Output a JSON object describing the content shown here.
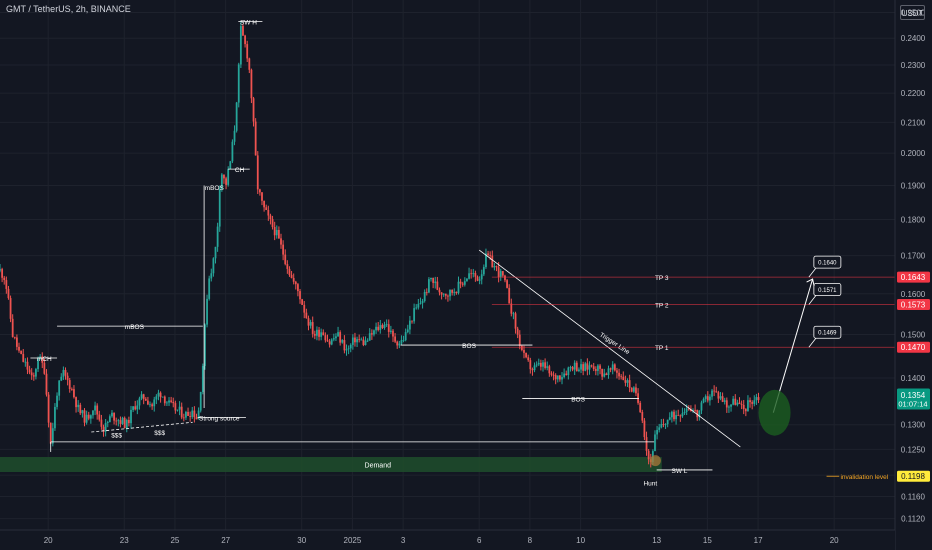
{
  "header": {
    "symbol": "GMT / TetherUS, 2h, BINANCE",
    "currency": "USDT"
  },
  "colors": {
    "background": "#131722",
    "grid": "#1e222d",
    "up": "#26a69a",
    "down": "#ef5350",
    "axis_text": "#b2b5be",
    "annotation": "#ffffff",
    "demand": "#1e4d2b",
    "tp_label": "#f23645",
    "price_label": "#089981",
    "invalidation": "#ffeb3b",
    "target_circle": "#1b5e20"
  },
  "chart_data": {
    "type": "candlestick",
    "y_axis": {
      "min": 0.11,
      "max": 0.255,
      "scale": "log",
      "tick_labels": [
        "0.2500",
        "0.2400",
        "0.2300",
        "0.2200",
        "0.2100",
        "0.2000",
        "0.1900",
        "0.1800",
        "0.1700",
        "0.1600",
        "0.1500",
        "0.1400",
        "0.1300",
        "0.1250",
        "0.1200",
        "0.1160",
        "0.1120"
      ]
    },
    "x_axis": {
      "tick_labels": [
        {
          "t": 20,
          "label": "20"
        },
        {
          "t": 23,
          "label": "23"
        },
        {
          "t": 25,
          "label": "25"
        },
        {
          "t": 27,
          "label": "27"
        },
        {
          "t": 30,
          "label": "30"
        },
        {
          "t": 32,
          "label": "2025"
        },
        {
          "t": 34,
          "label": "3"
        },
        {
          "t": 37,
          "label": "6"
        },
        {
          "t": 39,
          "label": "8"
        },
        {
          "t": 41,
          "label": "10"
        },
        {
          "t": 44,
          "label": "13"
        },
        {
          "t": 46,
          "label": "15"
        },
        {
          "t": 48,
          "label": "17"
        },
        {
          "t": 51,
          "label": "20"
        }
      ],
      "range": [
        18.1,
        53.4
      ]
    },
    "price_path": [
      [
        18.1,
        0.166
      ],
      [
        18.3,
        0.164
      ],
      [
        18.6,
        0.15
      ],
      [
        18.9,
        0.145
      ],
      [
        19.2,
        0.142
      ],
      [
        19.4,
        0.139
      ],
      [
        19.6,
        0.145
      ],
      [
        19.85,
        0.142
      ],
      [
        20.1,
        0.126
      ],
      [
        20.35,
        0.137
      ],
      [
        20.6,
        0.141
      ],
      [
        20.9,
        0.138
      ],
      [
        21.2,
        0.133
      ],
      [
        21.5,
        0.131
      ],
      [
        21.8,
        0.134
      ],
      [
        22.2,
        0.129
      ],
      [
        22.5,
        0.132
      ],
      [
        22.8,
        0.131
      ],
      [
        23.1,
        0.13
      ],
      [
        23.4,
        0.134
      ],
      [
        23.8,
        0.136
      ],
      [
        24.1,
        0.134
      ],
      [
        24.4,
        0.137
      ],
      [
        24.8,
        0.134
      ],
      [
        25.1,
        0.133
      ],
      [
        25.4,
        0.132
      ],
      [
        25.7,
        0.133
      ],
      [
        25.9,
        0.131
      ],
      [
        26.1,
        0.143
      ],
      [
        26.3,
        0.163
      ],
      [
        26.5,
        0.168
      ],
      [
        26.65,
        0.174
      ],
      [
        26.8,
        0.195
      ],
      [
        27.0,
        0.19
      ],
      [
        27.2,
        0.198
      ],
      [
        27.35,
        0.208
      ],
      [
        27.5,
        0.226
      ],
      [
        27.6,
        0.243
      ],
      [
        27.75,
        0.238
      ],
      [
        27.9,
        0.232
      ],
      [
        28.05,
        0.215
      ],
      [
        28.25,
        0.19
      ],
      [
        28.45,
        0.184
      ],
      [
        28.7,
        0.18
      ],
      [
        29.0,
        0.176
      ],
      [
        29.3,
        0.17
      ],
      [
        29.6,
        0.164
      ],
      [
        29.9,
        0.16
      ],
      [
        30.2,
        0.154
      ],
      [
        30.5,
        0.15
      ],
      [
        30.8,
        0.151
      ],
      [
        31.1,
        0.148
      ],
      [
        31.4,
        0.15
      ],
      [
        31.8,
        0.146
      ],
      [
        32.1,
        0.149
      ],
      [
        32.5,
        0.148
      ],
      [
        32.9,
        0.151
      ],
      [
        33.3,
        0.153
      ],
      [
        33.6,
        0.149
      ],
      [
        33.9,
        0.148
      ],
      [
        34.1,
        0.15
      ],
      [
        34.4,
        0.155
      ],
      [
        34.8,
        0.159
      ],
      [
        35.1,
        0.164
      ],
      [
        35.4,
        0.161
      ],
      [
        35.8,
        0.16
      ],
      [
        36.2,
        0.162
      ],
      [
        36.6,
        0.165
      ],
      [
        37.0,
        0.164
      ],
      [
        37.3,
        0.17
      ],
      [
        37.6,
        0.167
      ],
      [
        37.95,
        0.164
      ],
      [
        38.2,
        0.158
      ],
      [
        38.5,
        0.15
      ],
      [
        38.8,
        0.144
      ],
      [
        39.1,
        0.142
      ],
      [
        39.5,
        0.143
      ],
      [
        39.9,
        0.14
      ],
      [
        40.3,
        0.141
      ],
      [
        40.7,
        0.143
      ],
      [
        41.1,
        0.142
      ],
      [
        41.5,
        0.143
      ],
      [
        41.9,
        0.141
      ],
      [
        42.3,
        0.142
      ],
      [
        42.7,
        0.14
      ],
      [
        43.1,
        0.137
      ],
      [
        43.4,
        0.133
      ],
      [
        43.6,
        0.125
      ],
      [
        43.75,
        0.122
      ],
      [
        43.9,
        0.127
      ],
      [
        44.1,
        0.129
      ],
      [
        44.4,
        0.131
      ],
      [
        44.7,
        0.132
      ],
      [
        45.0,
        0.133
      ],
      [
        45.3,
        0.134
      ],
      [
        45.6,
        0.132
      ],
      [
        45.9,
        0.135
      ],
      [
        46.2,
        0.137
      ],
      [
        46.5,
        0.136
      ],
      [
        46.8,
        0.134
      ],
      [
        47.1,
        0.135
      ],
      [
        47.4,
        0.133
      ],
      [
        47.7,
        0.135
      ],
      [
        48.05,
        0.136
      ]
    ],
    "annotations": {
      "levels": [
        {
          "name": "TP 3",
          "price": 0.1643,
          "label": "0.1643",
          "target_label": "0.1640"
        },
        {
          "name": "TP 2",
          "price": 0.1573,
          "label": "0.1573",
          "target_label": "0.1571"
        },
        {
          "name": "TP 1",
          "price": 0.147,
          "label": "0.1470",
          "target_label": "0.1469"
        }
      ],
      "last_price": {
        "price": 0.1354,
        "label": "0.1354",
        "countdown": "01:07:14"
      },
      "invalidation": {
        "price": 0.1198,
        "label": "0.1198",
        "text": "invalidation level"
      },
      "demand_zone": {
        "top": 0.1235,
        "bottom": 0.1206,
        "text": "Demand"
      },
      "texts": {
        "sw_h": "SW H",
        "ch": "CH",
        "mbos_vertical": "mBOS",
        "mch": "mCH",
        "mbos_horizontal": "mBOS",
        "liquidity_1": "$$$",
        "liquidity_2": "$$$",
        "strong_source": "Strong source",
        "bos_1": "BOS",
        "bos_2": "BOS",
        "trigger_line": "Trigger Line",
        "sw_l": "SW L",
        "hunt": "Hunt"
      }
    }
  }
}
